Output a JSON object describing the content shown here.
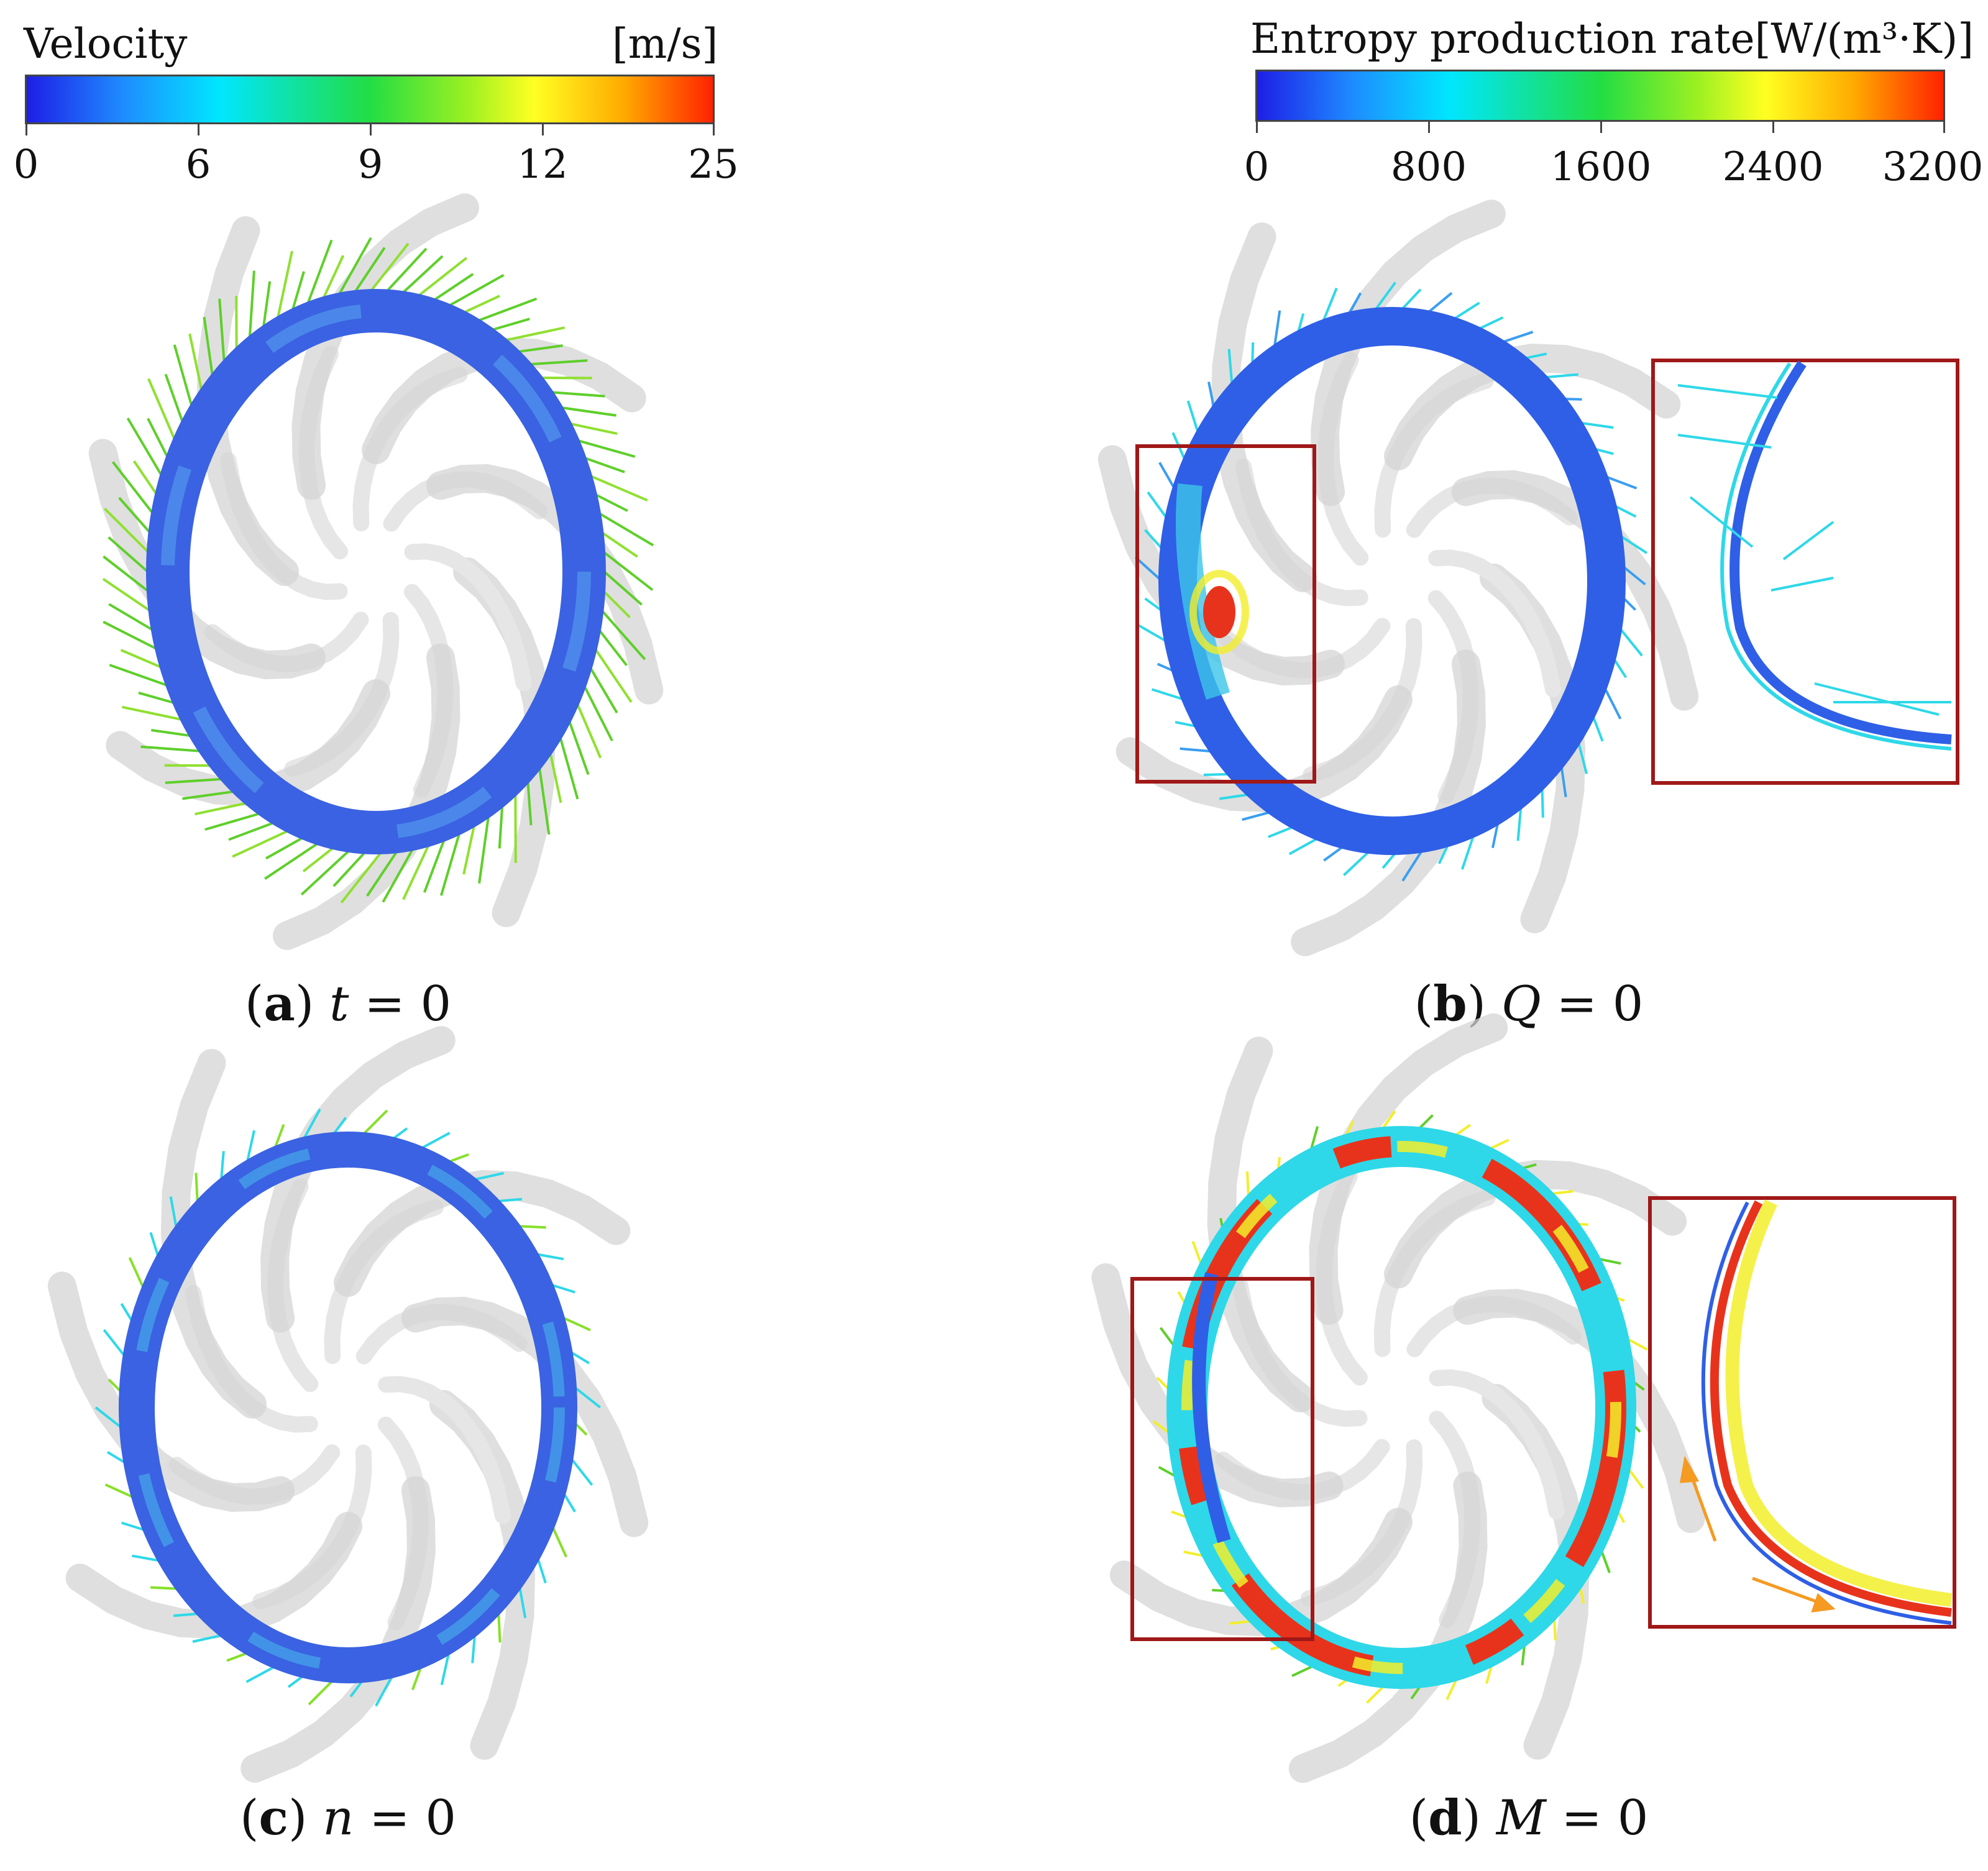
{
  "legend_velocity": {
    "title": "Velocity",
    "unit": "[m/s]",
    "ticks": [
      "0",
      "6",
      "9",
      "12",
      "25"
    ]
  },
  "legend_entropy": {
    "title": "Entropy production rate[W/(m³·K)]",
    "ticks": [
      "0",
      "800",
      "1600",
      "2400",
      "3200"
    ]
  },
  "panels": [
    {
      "letter": "a",
      "var": "t",
      "rest": " = 0"
    },
    {
      "letter": "b",
      "var": "Q",
      "rest": " = 0"
    },
    {
      "letter": "c",
      "var": "n",
      "rest": " = 0"
    },
    {
      "letter": "d",
      "var": "M",
      "rest": " = 0"
    }
  ],
  "colors": {
    "ring_blue": "#2f5fe6",
    "ring_light": "#4aa4ee",
    "arrow_green": "#5ecf2a",
    "arrow_cyan": "#2ed8e8",
    "hot_red": "#e8331c",
    "hot_yellow": "#f2ee2a",
    "inset_frame": "#a01818",
    "blade_grey": "#d4d4d4"
  }
}
